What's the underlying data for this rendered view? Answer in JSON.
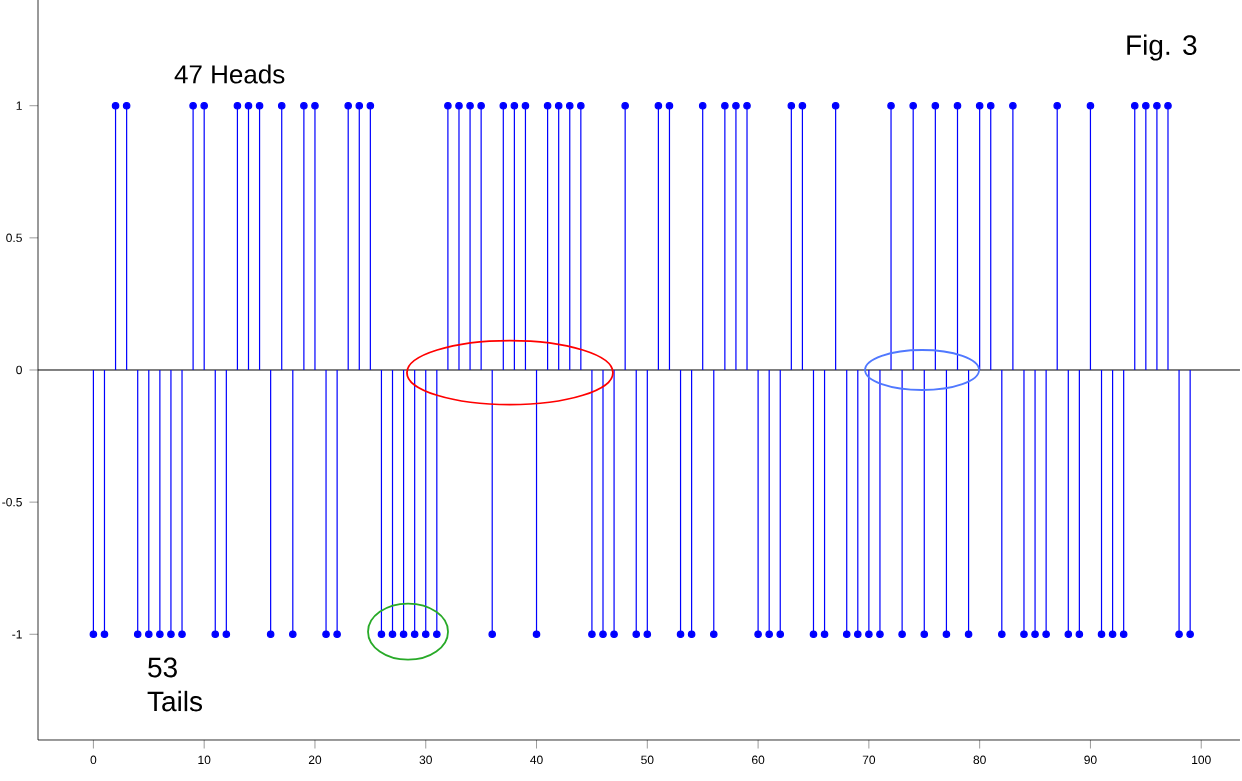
{
  "chart_data": {
    "type": "lollipop",
    "x": [
      0,
      1,
      2,
      3,
      4,
      5,
      6,
      7,
      8,
      9,
      10,
      11,
      12,
      13,
      14,
      15,
      16,
      17,
      18,
      19,
      20,
      21,
      22,
      23,
      24,
      25,
      26,
      27,
      28,
      29,
      30,
      31,
      32,
      33,
      34,
      35,
      36,
      37,
      38,
      39,
      40,
      41,
      42,
      43,
      44,
      45,
      46,
      47,
      48,
      49,
      50,
      51,
      52,
      53,
      54,
      55,
      56,
      57,
      58,
      59,
      60,
      61,
      62,
      63,
      64,
      65,
      66,
      67,
      68,
      69,
      70,
      71,
      72,
      73,
      74,
      75,
      76,
      77,
      78,
      79,
      80,
      81,
      82,
      83,
      84,
      85,
      86,
      87,
      88,
      89,
      90,
      91,
      92,
      93,
      94,
      95,
      96,
      97,
      98,
      99
    ],
    "values": [
      -1,
      -1,
      1,
      1,
      -1,
      -1,
      -1,
      -1,
      -1,
      1,
      1,
      -1,
      -1,
      1,
      1,
      1,
      -1,
      1,
      -1,
      1,
      1,
      -1,
      -1,
      1,
      1,
      1,
      -1,
      -1,
      -1,
      -1,
      -1,
      -1,
      1,
      1,
      1,
      1,
      -1,
      1,
      1,
      1,
      -1,
      1,
      1,
      1,
      1,
      -1,
      -1,
      -1,
      1,
      -1,
      -1,
      1,
      1,
      -1,
      -1,
      1,
      -1,
      1,
      1,
      1,
      -1,
      -1,
      -1,
      1,
      1,
      -1,
      -1,
      1,
      -1,
      -1,
      -1,
      -1,
      1,
      -1,
      1,
      -1,
      1,
      -1,
      1,
      -1,
      1,
      1,
      -1,
      1,
      -1,
      -1,
      -1,
      1,
      -1,
      -1,
      1,
      -1,
      -1,
      -1,
      1,
      1,
      1,
      1,
      -1,
      -1
    ],
    "color": "#0000ff",
    "marker": "circle",
    "xlim": [
      -5,
      103.5
    ],
    "ylim": [
      -1.4,
      1.4
    ],
    "xticks": [
      0,
      10,
      20,
      30,
      40,
      50,
      60,
      70,
      80,
      90,
      100
    ],
    "yticks": [
      -1,
      -0.5,
      0,
      0.5,
      1
    ],
    "annotations": [
      "47 Heads",
      "53 Tails",
      "Fig. 3"
    ]
  }
}
